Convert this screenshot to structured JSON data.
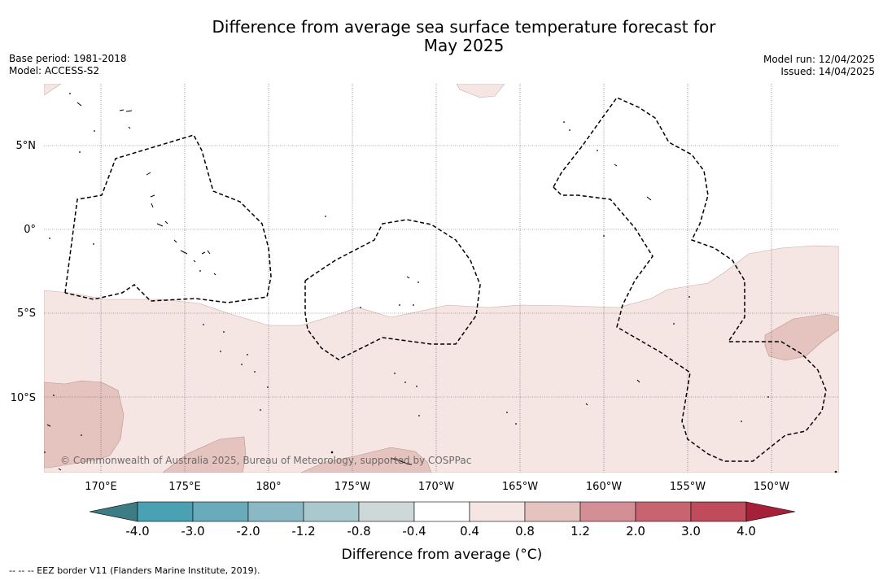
{
  "title_line1": "Difference from average sea surface temperature forecast for",
  "title_line2": "May 2025",
  "base_period": "Base period: 1981-2018",
  "model": "Model: ACCESS-S2",
  "model_run": "Model run: 12/04/2025",
  "issued": "Issued: 14/04/2025",
  "latitude_labels": [
    "5°N",
    "0°",
    "5°S",
    "10°S"
  ],
  "longitude_labels": [
    "170°E",
    "175°E",
    "180°",
    "175°W",
    "170°W",
    "165°W",
    "160°W",
    "155°W",
    "150°W"
  ],
  "copyright": "© Commonwealth of Australia 2025, Bureau of Meteorology, supported by COSPPac",
  "colorbar": {
    "title": "Difference from average (°C)",
    "ticks": [
      "-4.0",
      "-3.0",
      "-2.0",
      "-1.2",
      "-0.8",
      "-0.4",
      "0.4",
      "0.8",
      "1.2",
      "2.0",
      "3.0",
      "4.0"
    ],
    "colors": [
      "#3c7d85",
      "#4aa1b4",
      "#6aabbb",
      "#8ab8c4",
      "#aac9ce",
      "#cfd8d9",
      "#ffffff",
      "#f5e6e4",
      "#e5c4bf",
      "#d48e95",
      "#c86470",
      "#bf4b5b",
      "#a6203a"
    ]
  },
  "legend_note": "--  --  -- EEZ border V11 (Flanders Marine Institute, 2019).",
  "anomaly_colors": {
    "light": "#f5e6e4",
    "medium": "#e5c4bf"
  }
}
